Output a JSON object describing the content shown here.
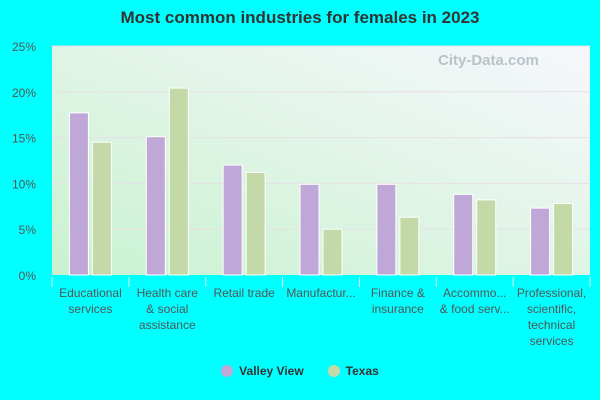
{
  "chart_data": {
    "type": "bar",
    "title": "Most common industries for females in 2023",
    "categories": [
      [
        "Educational",
        "services"
      ],
      [
        "Health care",
        "& social",
        "assistance"
      ],
      [
        "Retail trade"
      ],
      [
        "Manufactur..."
      ],
      [
        "Finance &",
        "insurance"
      ],
      [
        "Accommo...",
        "& food serv..."
      ],
      [
        "Professional,",
        "scientific,",
        "technical",
        "services"
      ]
    ],
    "series": [
      {
        "name": "Valley View",
        "color": "#bfa8d8",
        "values": [
          17.7,
          15.1,
          12.0,
          9.9,
          9.9,
          8.8,
          7.3
        ]
      },
      {
        "name": "Texas",
        "color": "#c4d9a8",
        "values": [
          14.5,
          20.4,
          11.2,
          5.0,
          6.3,
          8.2,
          7.8
        ]
      }
    ],
    "yticks": [
      "0%",
      "5%",
      "10%",
      "15%",
      "20%",
      "25%"
    ],
    "ylim": [
      0,
      25
    ],
    "grid": true,
    "legend": "bottom"
  },
  "watermark": "City-Data.com"
}
